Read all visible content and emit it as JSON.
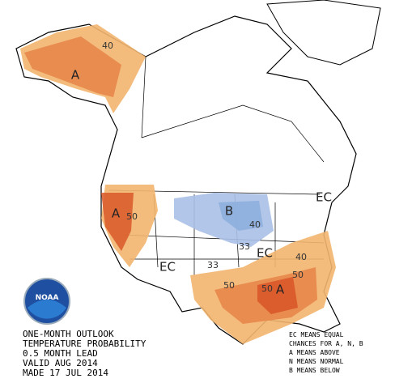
{
  "title_lines": [
    "ONE-MONTH OUTLOOK",
    "TEMPERATURE PROBABILITY",
    "0.5 MONTH LEAD",
    "VALID AUG 2014",
    "MADE 17 JUL 2014"
  ],
  "legend_lines": [
    "EC MEANS EQUAL",
    "CHANCES FOR A, N, B",
    "A MEANS ABOVE",
    "N MEANS NORMAL",
    "B MEANS BELOW"
  ],
  "logo": "NOAA",
  "map_labels": [
    "40",
    "A",
    "A",
    "50",
    "B",
    "40",
    "33",
    "EC",
    "EC",
    "EC",
    "33",
    "50",
    "50",
    "A",
    "50",
    "40"
  ]
}
